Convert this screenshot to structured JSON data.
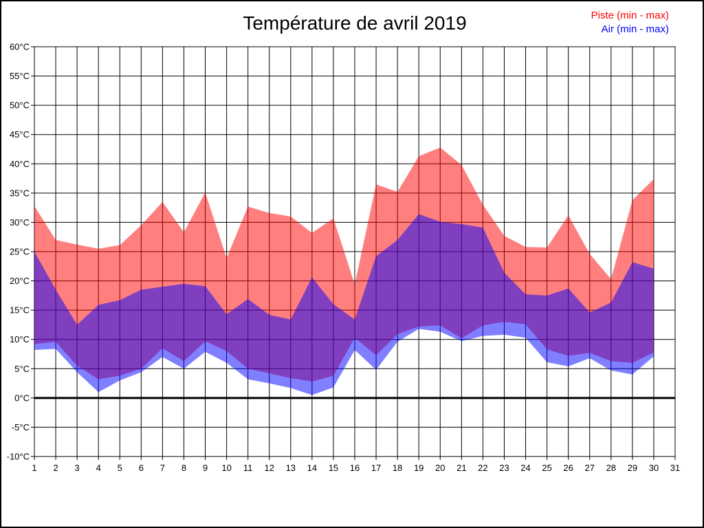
{
  "title": "Température de avril 2019",
  "legend": [
    {
      "label": "Piste (min - max)",
      "color": "#FF0000"
    },
    {
      "label": "Air (min - max)",
      "color": "#0000FF"
    }
  ],
  "axes": {
    "y_unit": "°C",
    "y_min": -10,
    "y_max": 60,
    "y_step": 5,
    "zero_line_value": 0,
    "y_tick_labels": [
      "60°C",
      "55°C",
      "50°C",
      "45°C",
      "40°C",
      "35°C",
      "30°C",
      "25°C",
      "20°C",
      "15°C",
      "10°C",
      "5°C",
      "0°C",
      "-5°C",
      "-10°C"
    ],
    "x_tick_labels": [
      "1",
      "2",
      "3",
      "4",
      "5",
      "6",
      "7",
      "8",
      "9",
      "10",
      "11",
      "12",
      "13",
      "14",
      "15",
      "16",
      "17",
      "18",
      "19",
      "20",
      "21",
      "22",
      "23",
      "24",
      "25",
      "26",
      "27",
      "28",
      "29",
      "30",
      "31"
    ]
  },
  "chart_data": {
    "type": "area",
    "title": "Température de avril 2019",
    "xlabel": "",
    "ylabel": "",
    "xlim": [
      1,
      31
    ],
    "ylim": [
      -10,
      60
    ],
    "grid": true,
    "legend_position": "top-right",
    "x": [
      1,
      2,
      3,
      4,
      5,
      6,
      7,
      8,
      9,
      10,
      11,
      12,
      13,
      14,
      15,
      16,
      17,
      18,
      19,
      20,
      21,
      22,
      23,
      24,
      25,
      26,
      27,
      28,
      29,
      30
    ],
    "series": [
      {
        "name": "Piste (min - max)",
        "color": "#FF0000",
        "fill_opacity": 0.5,
        "max": [
          32.8,
          27.0,
          26.2,
          25.5,
          26.1,
          29.5,
          33.5,
          28.3,
          35.1,
          23.9,
          32.7,
          31.6,
          31.0,
          28.2,
          30.7,
          19.4,
          36.5,
          35.2,
          41.3,
          42.8,
          39.8,
          33.0,
          27.7,
          25.8,
          25.7,
          31.2,
          24.6,
          20.3,
          33.8,
          37.4
        ],
        "min": [
          9.2,
          9.6,
          5.5,
          3.2,
          3.8,
          5.0,
          8.5,
          6.3,
          9.7,
          8.0,
          5.0,
          4.2,
          3.4,
          2.8,
          3.8,
          10.3,
          7.3,
          10.9,
          12.2,
          12.4,
          10.2,
          12.4,
          13.0,
          12.6,
          8.3,
          7.2,
          7.7,
          6.3,
          6.0,
          7.8
        ]
      },
      {
        "name": "Air (min - max)",
        "color": "#0000FF",
        "fill_opacity": 0.5,
        "max": [
          25.0,
          18.5,
          12.5,
          15.9,
          16.7,
          18.5,
          19.0,
          19.5,
          19.1,
          14.3,
          16.9,
          14.2,
          13.4,
          20.6,
          16.0,
          13.4,
          24.2,
          27.0,
          31.4,
          30.1,
          29.7,
          29.1,
          21.4,
          17.7,
          17.5,
          18.7,
          14.6,
          16.3,
          23.2,
          22.1
        ],
        "min": [
          8.2,
          8.4,
          4.4,
          1.0,
          3.0,
          4.4,
          7.0,
          5.0,
          7.9,
          6.0,
          3.2,
          2.5,
          1.7,
          0.5,
          1.8,
          8.2,
          4.8,
          9.6,
          11.8,
          11.3,
          9.7,
          10.6,
          10.8,
          10.3,
          6.1,
          5.4,
          6.8,
          4.7,
          4.0,
          7.1
        ]
      }
    ]
  }
}
